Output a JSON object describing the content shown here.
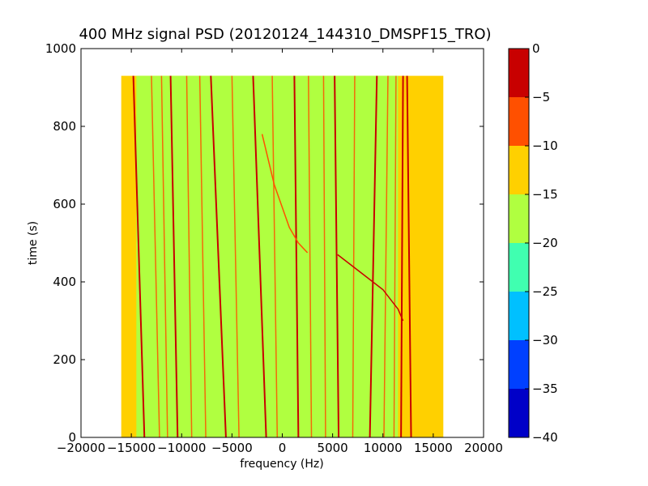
{
  "chart_data": {
    "type": "heatmap",
    "title": "400 MHz signal PSD (20120124_144310_DMSPF15_TRO)",
    "xlabel": "frequency (Hz)",
    "ylabel": "time (s)",
    "xlim": [
      -20000,
      20000
    ],
    "ylim": [
      0,
      1000
    ],
    "x_ticks": [
      -20000,
      -15000,
      -10000,
      -5000,
      0,
      5000,
      10000,
      15000,
      20000
    ],
    "x_tick_labels": [
      "−20000",
      "−15000",
      "−10000",
      "−5000",
      "0",
      "5000",
      "10000",
      "15000",
      "20000"
    ],
    "y_ticks": [
      0,
      200,
      400,
      600,
      800,
      1000
    ],
    "y_tick_labels": [
      "0",
      "200",
      "400",
      "600",
      "800",
      "1000"
    ],
    "data_extent": {
      "freq": [
        -16000,
        16000
      ],
      "time": [
        0,
        930
      ]
    },
    "colorbar": {
      "range": [
        -40,
        0
      ],
      "levels": [
        -40,
        -35,
        -30,
        -25,
        -20,
        -15,
        -10,
        -5,
        0
      ],
      "tick_labels": [
        "−40",
        "−35",
        "−30",
        "−25",
        "−20",
        "−15",
        "−10",
        "−5",
        "0"
      ],
      "colors": [
        "#0000c8",
        "#0040ff",
        "#00c0ff",
        "#40ffb0",
        "#b0ff40",
        "#ffd000",
        "#ff5000",
        "#c80000"
      ]
    },
    "background_level_db": -17,
    "edge_band_level_db": -12,
    "harmonic_lines": [
      {
        "f_top": -14800,
        "f_bottom": -13700,
        "level_db": -3
      },
      {
        "f_top": -11100,
        "f_bottom": -10400,
        "level_db": -3
      },
      {
        "f_top": -7100,
        "f_bottom": -5600,
        "level_db": -3
      },
      {
        "f_top": -2900,
        "f_bottom": -1600,
        "level_db": -4
      },
      {
        "f_top": 1200,
        "f_bottom": 1600,
        "level_db": -5
      },
      {
        "f_top": 5200,
        "f_bottom": 5600,
        "level_db": -4
      },
      {
        "f_top": 9400,
        "f_bottom": 8700,
        "level_db": -4
      },
      {
        "f_top": 12000,
        "f_bottom": 11800,
        "level_db": -2
      },
      {
        "f_top": 12400,
        "f_bottom": 12800,
        "level_db": -1
      },
      {
        "f_top": -13000,
        "f_bottom": -12200,
        "level_db": -10
      },
      {
        "f_top": -12000,
        "f_bottom": -11400,
        "level_db": -10
      },
      {
        "f_top": -9500,
        "f_bottom": -9000,
        "level_db": -10
      },
      {
        "f_top": -8200,
        "f_bottom": -7600,
        "level_db": -10
      },
      {
        "f_top": -5000,
        "f_bottom": -4300,
        "level_db": -10
      },
      {
        "f_top": -1000,
        "f_bottom": -500,
        "level_db": -10
      },
      {
        "f_top": 2600,
        "f_bottom": 2900,
        "level_db": -10
      },
      {
        "f_top": 4100,
        "f_bottom": 4300,
        "level_db": -10
      },
      {
        "f_top": 7200,
        "f_bottom": 7000,
        "level_db": -10
      },
      {
        "f_top": 10500,
        "f_bottom": 10100,
        "level_db": -10
      },
      {
        "f_top": 11300,
        "f_bottom": 11100,
        "level_db": -10
      }
    ],
    "drift_traces": [
      {
        "points": [
          [
            -2000,
            780
          ],
          [
            -800,
            650
          ],
          [
            700,
            540
          ],
          [
            1600,
            500
          ],
          [
            2500,
            475
          ]
        ],
        "level_db": -8
      },
      {
        "points": [
          [
            5500,
            470
          ],
          [
            8000,
            420
          ],
          [
            10000,
            380
          ],
          [
            11500,
            330
          ],
          [
            12000,
            300
          ]
        ],
        "level_db": -4
      }
    ]
  }
}
